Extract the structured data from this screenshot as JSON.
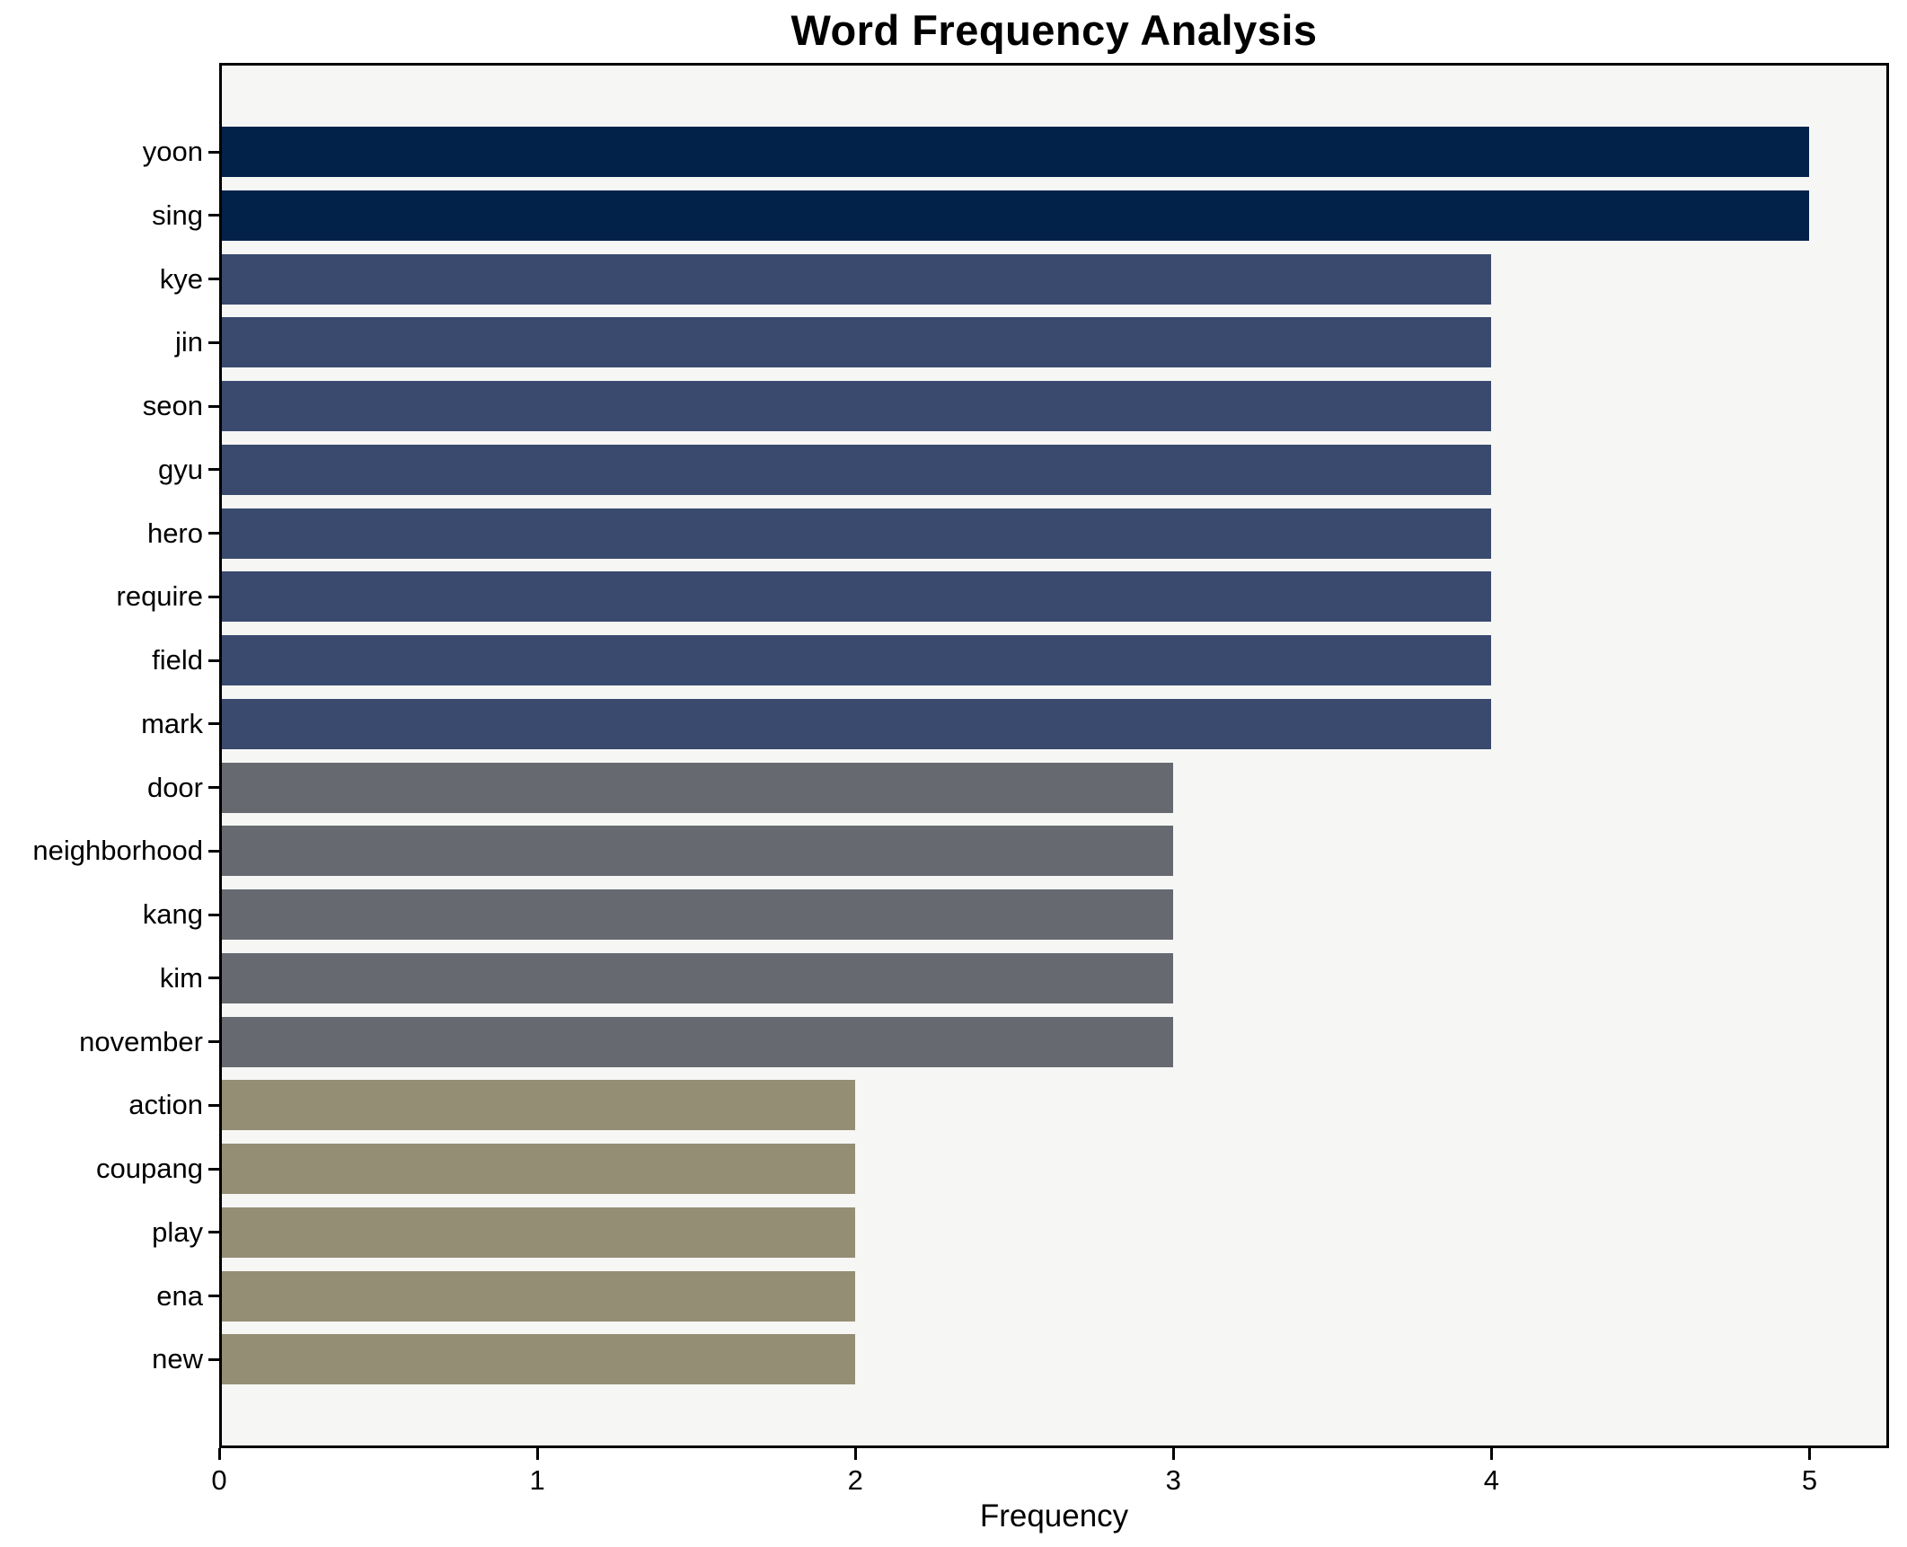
{
  "chart_data": {
    "type": "bar",
    "orientation": "horizontal",
    "title": "Word Frequency Analysis",
    "xlabel": "Frequency",
    "ylabel": "",
    "categories": [
      "yoon",
      "sing",
      "kye",
      "jin",
      "seon",
      "gyu",
      "hero",
      "require",
      "field",
      "mark",
      "door",
      "neighborhood",
      "kang",
      "kim",
      "november",
      "action",
      "coupang",
      "play",
      "ena",
      "new"
    ],
    "values": [
      5,
      5,
      4,
      4,
      4,
      4,
      4,
      4,
      4,
      4,
      3,
      3,
      3,
      3,
      3,
      2,
      2,
      2,
      2,
      2
    ],
    "x_ticks": [
      0,
      1,
      2,
      3,
      4,
      5
    ],
    "xlim": [
      0,
      5.25
    ],
    "grid": false,
    "legend": false,
    "bar_colors_by_value": {
      "5": "#02224a",
      "4": "#3a4a6f",
      "3": "#666a70",
      "2": "#948e75"
    },
    "plot_background": "#f6f6f4",
    "figure_background": "#ffffff",
    "spine_color": "#000000"
  }
}
